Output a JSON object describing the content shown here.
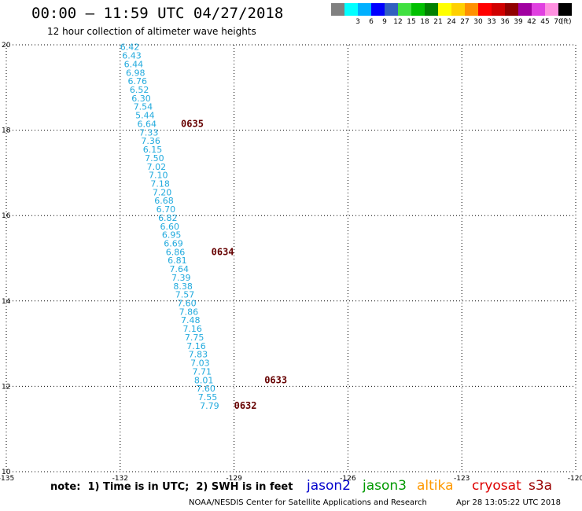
{
  "header": {
    "title": "00:00 – 11:59 UTC 04/27/2018",
    "subtitle": "12 hour collection of altimeter wave heights"
  },
  "color_scale": {
    "unit": "(ft)",
    "steps": [
      {
        "label": "",
        "color": "#808080"
      },
      {
        "label": "3",
        "color": "#00ffff"
      },
      {
        "label": "6",
        "color": "#00b0ff"
      },
      {
        "label": "9",
        "color": "#0000ff"
      },
      {
        "label": "12",
        "color": "#3060c0"
      },
      {
        "label": "15",
        "color": "#40e040"
      },
      {
        "label": "18",
        "color": "#00c000"
      },
      {
        "label": "21",
        "color": "#008000"
      },
      {
        "label": "24",
        "color": "#ffff00"
      },
      {
        "label": "27",
        "color": "#ffd000"
      },
      {
        "label": "30",
        "color": "#ff9000"
      },
      {
        "label": "33",
        "color": "#ff0000"
      },
      {
        "label": "36",
        "color": "#d00000"
      },
      {
        "label": "39",
        "color": "#900000"
      },
      {
        "label": "42",
        "color": "#a000a0"
      },
      {
        "label": "45",
        "color": "#e040e0"
      },
      {
        "label": "70",
        "color": "#ff90e0"
      },
      {
        "label": "",
        "color": "#000000"
      }
    ]
  },
  "footer": {
    "note": "note:  1) Time is in UTC;  2) SWH is in feet",
    "credit": "NOAA/NESDIS Center for Satellite Applications and Research",
    "timestamp": "Apr 28 13:05:22 UTC 2018"
  },
  "legend": [
    {
      "label": "jason2",
      "color": "#0000cc"
    },
    {
      "label": "jason3",
      "color": "#009900"
    },
    {
      "label": "altika",
      "color": "#ff9900"
    },
    {
      "label": "cryosat",
      "color": "#dd0000"
    },
    {
      "label": "s3a",
      "color": "#990000"
    }
  ],
  "chart_data": {
    "type": "scatter",
    "xlim": [
      -135,
      -120
    ],
    "ylim": [
      10,
      20
    ],
    "x_ticks": [
      -135,
      -132,
      -129,
      -126,
      -123,
      -120
    ],
    "x_tick_labels": [
      "-135",
      "-132",
      "-129",
      "-126",
      "-123",
      "-120"
    ],
    "y_ticks": [
      10,
      12,
      14,
      16,
      18,
      20
    ],
    "y_tick_labels": [
      "10",
      "12",
      "14",
      "16",
      "18",
      "20"
    ],
    "grid": true,
    "value_color": "#22aadd",
    "time_color": "#660000",
    "points": [
      {
        "lon": -132.0,
        "lat": 19.95,
        "swh": "6.42"
      },
      {
        "lon": -131.95,
        "lat": 19.75,
        "swh": "6.43"
      },
      {
        "lon": -131.9,
        "lat": 19.55,
        "swh": "6.44"
      },
      {
        "lon": -131.85,
        "lat": 19.35,
        "swh": "6.98"
      },
      {
        "lon": -131.8,
        "lat": 19.15,
        "swh": "6.76"
      },
      {
        "lon": -131.75,
        "lat": 18.95,
        "swh": "6.52"
      },
      {
        "lon": -131.7,
        "lat": 18.75,
        "swh": "6.30"
      },
      {
        "lon": -131.65,
        "lat": 18.55,
        "swh": "7.54"
      },
      {
        "lon": -131.6,
        "lat": 18.35,
        "swh": "5.44"
      },
      {
        "lon": -131.55,
        "lat": 18.15,
        "swh": "6.64"
      },
      {
        "lon": -131.5,
        "lat": 17.95,
        "swh": "7.33"
      },
      {
        "lon": -131.45,
        "lat": 17.75,
        "swh": "7.36"
      },
      {
        "lon": -131.4,
        "lat": 17.55,
        "swh": "6.15"
      },
      {
        "lon": -131.35,
        "lat": 17.35,
        "swh": "7.50"
      },
      {
        "lon": -131.3,
        "lat": 17.15,
        "swh": "7.02"
      },
      {
        "lon": -131.25,
        "lat": 16.95,
        "swh": "7.10"
      },
      {
        "lon": -131.2,
        "lat": 16.75,
        "swh": "7.18"
      },
      {
        "lon": -131.15,
        "lat": 16.55,
        "swh": "7.20"
      },
      {
        "lon": -131.1,
        "lat": 16.35,
        "swh": "6.68"
      },
      {
        "lon": -131.05,
        "lat": 16.15,
        "swh": "6.70"
      },
      {
        "lon": -131.0,
        "lat": 15.95,
        "swh": "6.82"
      },
      {
        "lon": -130.95,
        "lat": 15.75,
        "swh": "6.60"
      },
      {
        "lon": -130.9,
        "lat": 15.55,
        "swh": "6.95"
      },
      {
        "lon": -130.85,
        "lat": 15.35,
        "swh": "6.69"
      },
      {
        "lon": -130.8,
        "lat": 15.15,
        "swh": "6.86"
      },
      {
        "lon": -130.75,
        "lat": 14.95,
        "swh": "6.81"
      },
      {
        "lon": -130.7,
        "lat": 14.75,
        "swh": "7.64"
      },
      {
        "lon": -130.65,
        "lat": 14.55,
        "swh": "7.39"
      },
      {
        "lon": -130.6,
        "lat": 14.35,
        "swh": "8.38"
      },
      {
        "lon": -130.55,
        "lat": 14.15,
        "swh": "7.57"
      },
      {
        "lon": -130.5,
        "lat": 13.95,
        "swh": "7.60"
      },
      {
        "lon": -130.45,
        "lat": 13.75,
        "swh": "7.86"
      },
      {
        "lon": -130.4,
        "lat": 13.55,
        "swh": "7.48"
      },
      {
        "lon": -130.35,
        "lat": 13.35,
        "swh": "7.16"
      },
      {
        "lon": -130.3,
        "lat": 13.15,
        "swh": "7.75"
      },
      {
        "lon": -130.25,
        "lat": 12.95,
        "swh": "7.16"
      },
      {
        "lon": -130.2,
        "lat": 12.75,
        "swh": "7.83"
      },
      {
        "lon": -130.15,
        "lat": 12.55,
        "swh": "7.03"
      },
      {
        "lon": -130.1,
        "lat": 12.35,
        "swh": "7.71"
      },
      {
        "lon": -130.05,
        "lat": 12.15,
        "swh": "8.01"
      },
      {
        "lon": -130.0,
        "lat": 11.95,
        "swh": "7.60"
      },
      {
        "lon": -129.95,
        "lat": 11.75,
        "swh": "7.55"
      },
      {
        "lon": -129.9,
        "lat": 11.55,
        "swh": "7.79"
      }
    ],
    "time_labels": [
      {
        "lon": -130.4,
        "lat": 18.15,
        "text": "0635"
      },
      {
        "lon": -129.6,
        "lat": 15.15,
        "text": "0634"
      },
      {
        "lon": -128.2,
        "lat": 12.15,
        "text": "0633"
      },
      {
        "lon": -129.0,
        "lat": 11.55,
        "text": "0632"
      }
    ]
  }
}
